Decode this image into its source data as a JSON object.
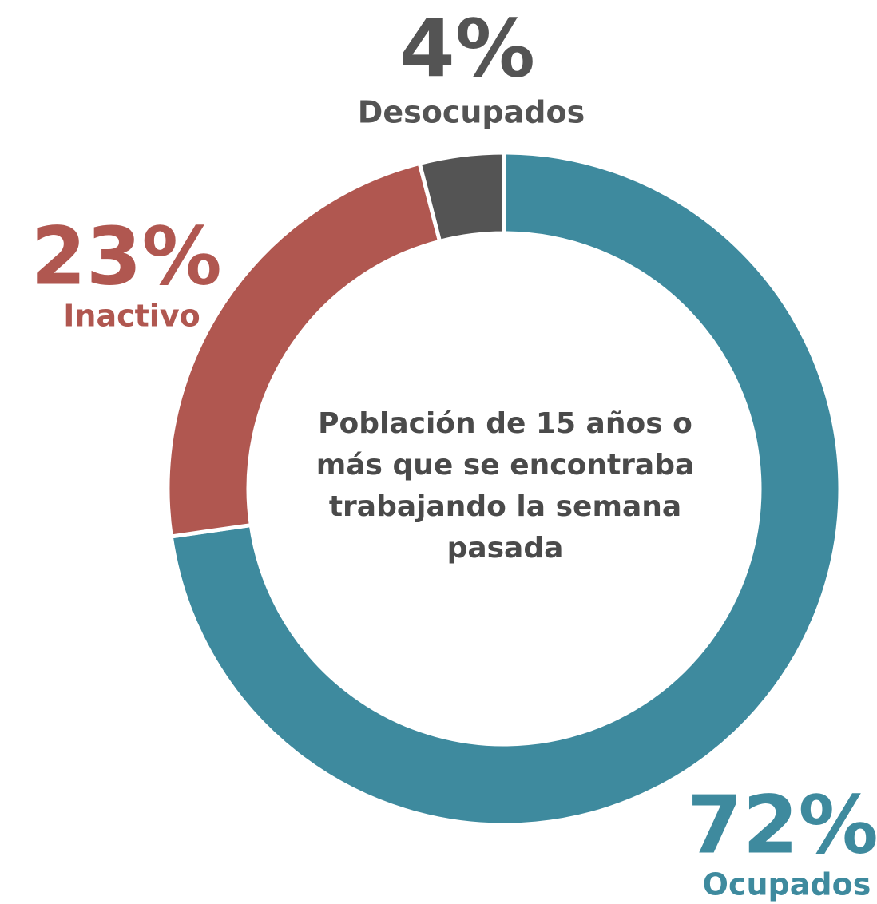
{
  "chart_data": {
    "type": "donut",
    "center_text": "Población de 15 años o más que se encontraba trabajando la semana pasada",
    "categories": [
      "Ocupados",
      "Inactivo",
      "Desocupados"
    ],
    "values": [
      72,
      23,
      4
    ],
    "value_labels": [
      "72%",
      "23%",
      "4%"
    ],
    "colors": [
      "#3e8a9e",
      "#b05750",
      "#545454"
    ]
  }
}
